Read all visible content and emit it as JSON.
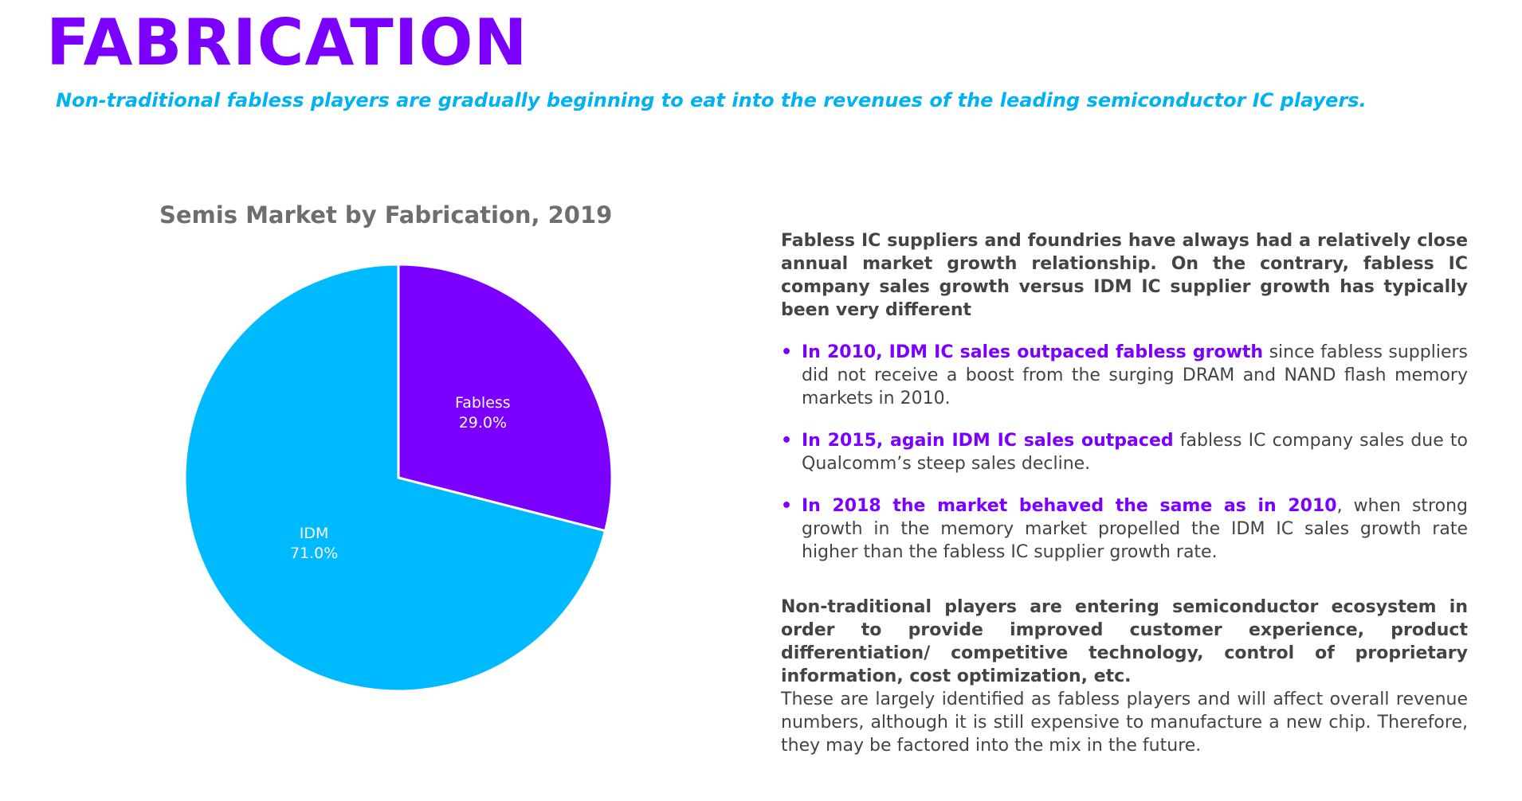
{
  "header": {
    "title": "FABRICATION",
    "subtitle": "Non-traditional fabless players are gradually beginning to eat into the revenues of the leading semiconductor IC players."
  },
  "chart_data": {
    "type": "pie",
    "title": "Semis Market by Fabrication, 2019",
    "slices": [
      {
        "label": "Fabless",
        "value": 29.0,
        "display": "29.0%",
        "color": "#7b00ff"
      },
      {
        "label": "IDM",
        "value": 71.0,
        "display": "71.0%",
        "color": "#00baff"
      }
    ],
    "start_angle": "12 o'clock",
    "direction": "clockwise"
  },
  "text": {
    "intro": "Fabless IC suppliers and foundries have always had a relatively close annual market growth relationship. On the contrary, fabless IC company sales growth versus IDM IC supplier growth has typically been very different",
    "bullets": [
      {
        "highlight": "In 2010, IDM IC sales outpaced fabless growth",
        "rest": " since fabless suppliers did not receive a boost from the surging DRAM and NAND flash memory markets in 2010."
      },
      {
        "highlight": "In 2015, again IDM IC sales outpaced",
        "rest": " fabless IC company sales due to Qualcomm’s steep sales decline."
      },
      {
        "highlight": "In 2018 the market behaved the same as in 2010",
        "rest": ", when strong growth in the memory market propelled the IDM IC sales growth rate higher than the fabless IC supplier growth rate."
      }
    ],
    "bullet_char": "•",
    "closing_bold": "Non-traditional players are entering semiconductor ecosystem in order to provide improved customer experience, product differentiation/ competitive technology, control of proprietary information, cost optimization, etc.",
    "closing": "These are largely identified as fabless players and will affect overall revenue numbers, although it is still expensive to manufacture a new chip. Therefore, they may be factored into the mix in the future."
  }
}
